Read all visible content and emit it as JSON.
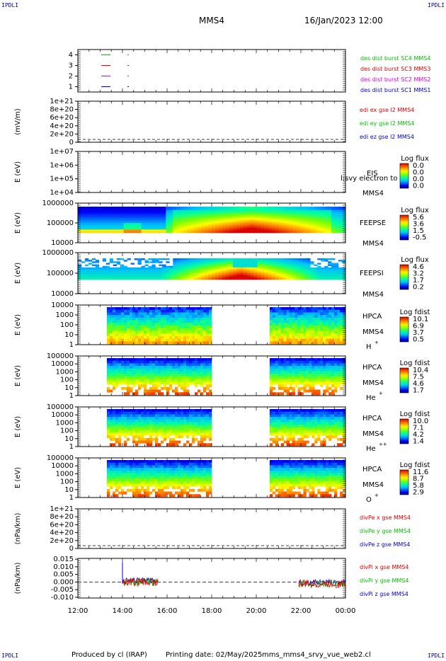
{
  "header": {
    "corner_tl": "IPDLI",
    "corner_tr": "IPDLI",
    "corner_bl": "IPDLI",
    "corner_br": "IPDLI",
    "spacecraft": "MMS4",
    "datetime": "16/Jan/2023 12:00"
  },
  "footer": {
    "produced_by": "Produced by cl (IRAP)",
    "printing_date": "Printing date: 02/May/2025",
    "script_name": "mms_mms4_srvy_vue_web2.cl"
  },
  "colors": {
    "red": "#e00000",
    "green": "#00c000",
    "blue": "#0000cc",
    "magenta": "#e000e0"
  },
  "chart_data": [
    {
      "type": "line",
      "panel": "des-dist-burst",
      "yticks": [
        "4",
        "3",
        "2",
        "1"
      ],
      "ylim": [
        0.5,
        4.5
      ],
      "series": [
        {
          "name": "des dist burst SC1 MMS1",
          "color": "#0000cc",
          "level": 1
        },
        {
          "name": "des dist burst SC2 MMS2",
          "color": "#e000e0",
          "level": 2
        },
        {
          "name": "des dist burst SC3 MMS3",
          "color": "#e00000",
          "level": 3
        },
        {
          "name": "des dist burst SC4 MMS4",
          "color": "#00c000",
          "level": 4
        }
      ]
    },
    {
      "type": "line",
      "panel": "edi-e-gse",
      "ylabel": "(mV/m)",
      "yticks": [
        "1e+21",
        "8e+20",
        "6e+20",
        "4e+20",
        "2e+20",
        "0"
      ],
      "ylim": [
        0,
        1e+21
      ],
      "series": [
        {
          "name": "edi ex gse l2 MMS4",
          "color": "#e00000"
        },
        {
          "name": "edi ey gse l2 MMS4",
          "color": "#00c000"
        },
        {
          "name": "edi ez gse l2 MMS4",
          "color": "#0000cc"
        }
      ]
    },
    {
      "type": "heatmap",
      "panel": "eis",
      "ylabel": "E (eV)",
      "yticks": [
        "1e+07",
        "1e+06",
        "1e+05",
        "1e+04"
      ],
      "instrument": "EIS",
      "sc": "MMS4",
      "overlay_text": "l:svy electron to",
      "colorbar_title": "Log flux",
      "colorbar_labels": [
        "0.0",
        "0.0",
        "0.0",
        "0.0"
      ]
    },
    {
      "type": "heatmap",
      "panel": "feepse",
      "ylabel": "E (eV)",
      "yticks": [
        "1000000",
        "100000",
        "10000"
      ],
      "instrument": "FEEPSE",
      "sc": "MMS4",
      "colorbar_title": "Log flux",
      "colorbar_labels": [
        "5.6",
        "3.6",
        "1.5",
        "-0.5"
      ]
    },
    {
      "type": "heatmap",
      "panel": "feepsi",
      "ylabel": "E (eV)",
      "yticks": [
        "1000000",
        "100000",
        "10000"
      ],
      "instrument": "FEEPSI",
      "sc": "MMS4",
      "colorbar_title": "Log flux",
      "colorbar_labels": [
        "4.6",
        "3.2",
        "1.7",
        "0.2"
      ]
    },
    {
      "type": "heatmap",
      "panel": "hpca-h",
      "ylabel": "E (eV)",
      "yticks": [
        "10000",
        "1000",
        "100",
        "10",
        "1"
      ],
      "instrument": "HPCA",
      "sc": "MMS4",
      "species": "H",
      "charge": "+",
      "colorbar_title": "Log fdist",
      "colorbar_labels": [
        "10.1",
        "6.9",
        "3.7",
        "0.5"
      ]
    },
    {
      "type": "heatmap",
      "panel": "hpca-he",
      "ylabel": "E (eV)",
      "yticks": [
        "100000",
        "10000",
        "1000",
        "100",
        "10",
        "1"
      ],
      "instrument": "HPCA",
      "sc": "MMS4",
      "species": "He",
      "charge": "+",
      "colorbar_title": "Log fdist",
      "colorbar_labels": [
        "10.4",
        "7.5",
        "4.6",
        "1.7"
      ]
    },
    {
      "type": "heatmap",
      "panel": "hpca-hepp",
      "ylabel": "E (eV)",
      "yticks": [
        "100000",
        "10000",
        "1000",
        "100",
        "10",
        "1"
      ],
      "instrument": "HPCA",
      "sc": "MMS4",
      "species": "He",
      "charge": "++",
      "colorbar_title": "Log fdist",
      "colorbar_labels": [
        "10.0",
        "7.1",
        "4.2",
        "1.4"
      ]
    },
    {
      "type": "heatmap",
      "panel": "hpca-o",
      "ylabel": "E (eV)",
      "yticks": [
        "100000",
        "10000",
        "1000",
        "100",
        "10",
        "1"
      ],
      "instrument": "HPCA",
      "sc": "MMS4",
      "species": "O",
      "charge": "+",
      "colorbar_title": "Log fdist",
      "colorbar_labels": [
        "11.6",
        "8.7",
        "5.8",
        "2.9"
      ]
    },
    {
      "type": "line",
      "panel": "dive",
      "ylabel": "(nPa/km)",
      "yticks": [
        "1e+21",
        "8e+20",
        "6e+20",
        "4e+20",
        "2e+20",
        "0"
      ],
      "ylim": [
        0,
        1e+21
      ],
      "series": [
        {
          "name": "divPe x gse MMS4",
          "color": "#e00000"
        },
        {
          "name": "divPe y gse MMS4",
          "color": "#00c000"
        },
        {
          "name": "divPe z gse MMS4",
          "color": "#0000cc"
        }
      ]
    },
    {
      "type": "line",
      "panel": "divi",
      "ylabel": "(nPa/km)",
      "yticks": [
        "0.015",
        "0.010",
        "0.005",
        "0.000",
        "-0.005",
        "-0.010"
      ],
      "ylim": [
        -0.0105,
        0.0155
      ],
      "series": [
        {
          "name": "divPi x gse MMS4",
          "color": "#e00000"
        },
        {
          "name": "divPi y gse MMS4",
          "color": "#00c000"
        },
        {
          "name": "divPi z gse MMS4",
          "color": "#0000cc"
        }
      ]
    }
  ],
  "xaxis": {
    "ticks": [
      "12:00",
      "14:00",
      "16:00",
      "18:00",
      "20:00",
      "22:00",
      "00:00"
    ]
  }
}
